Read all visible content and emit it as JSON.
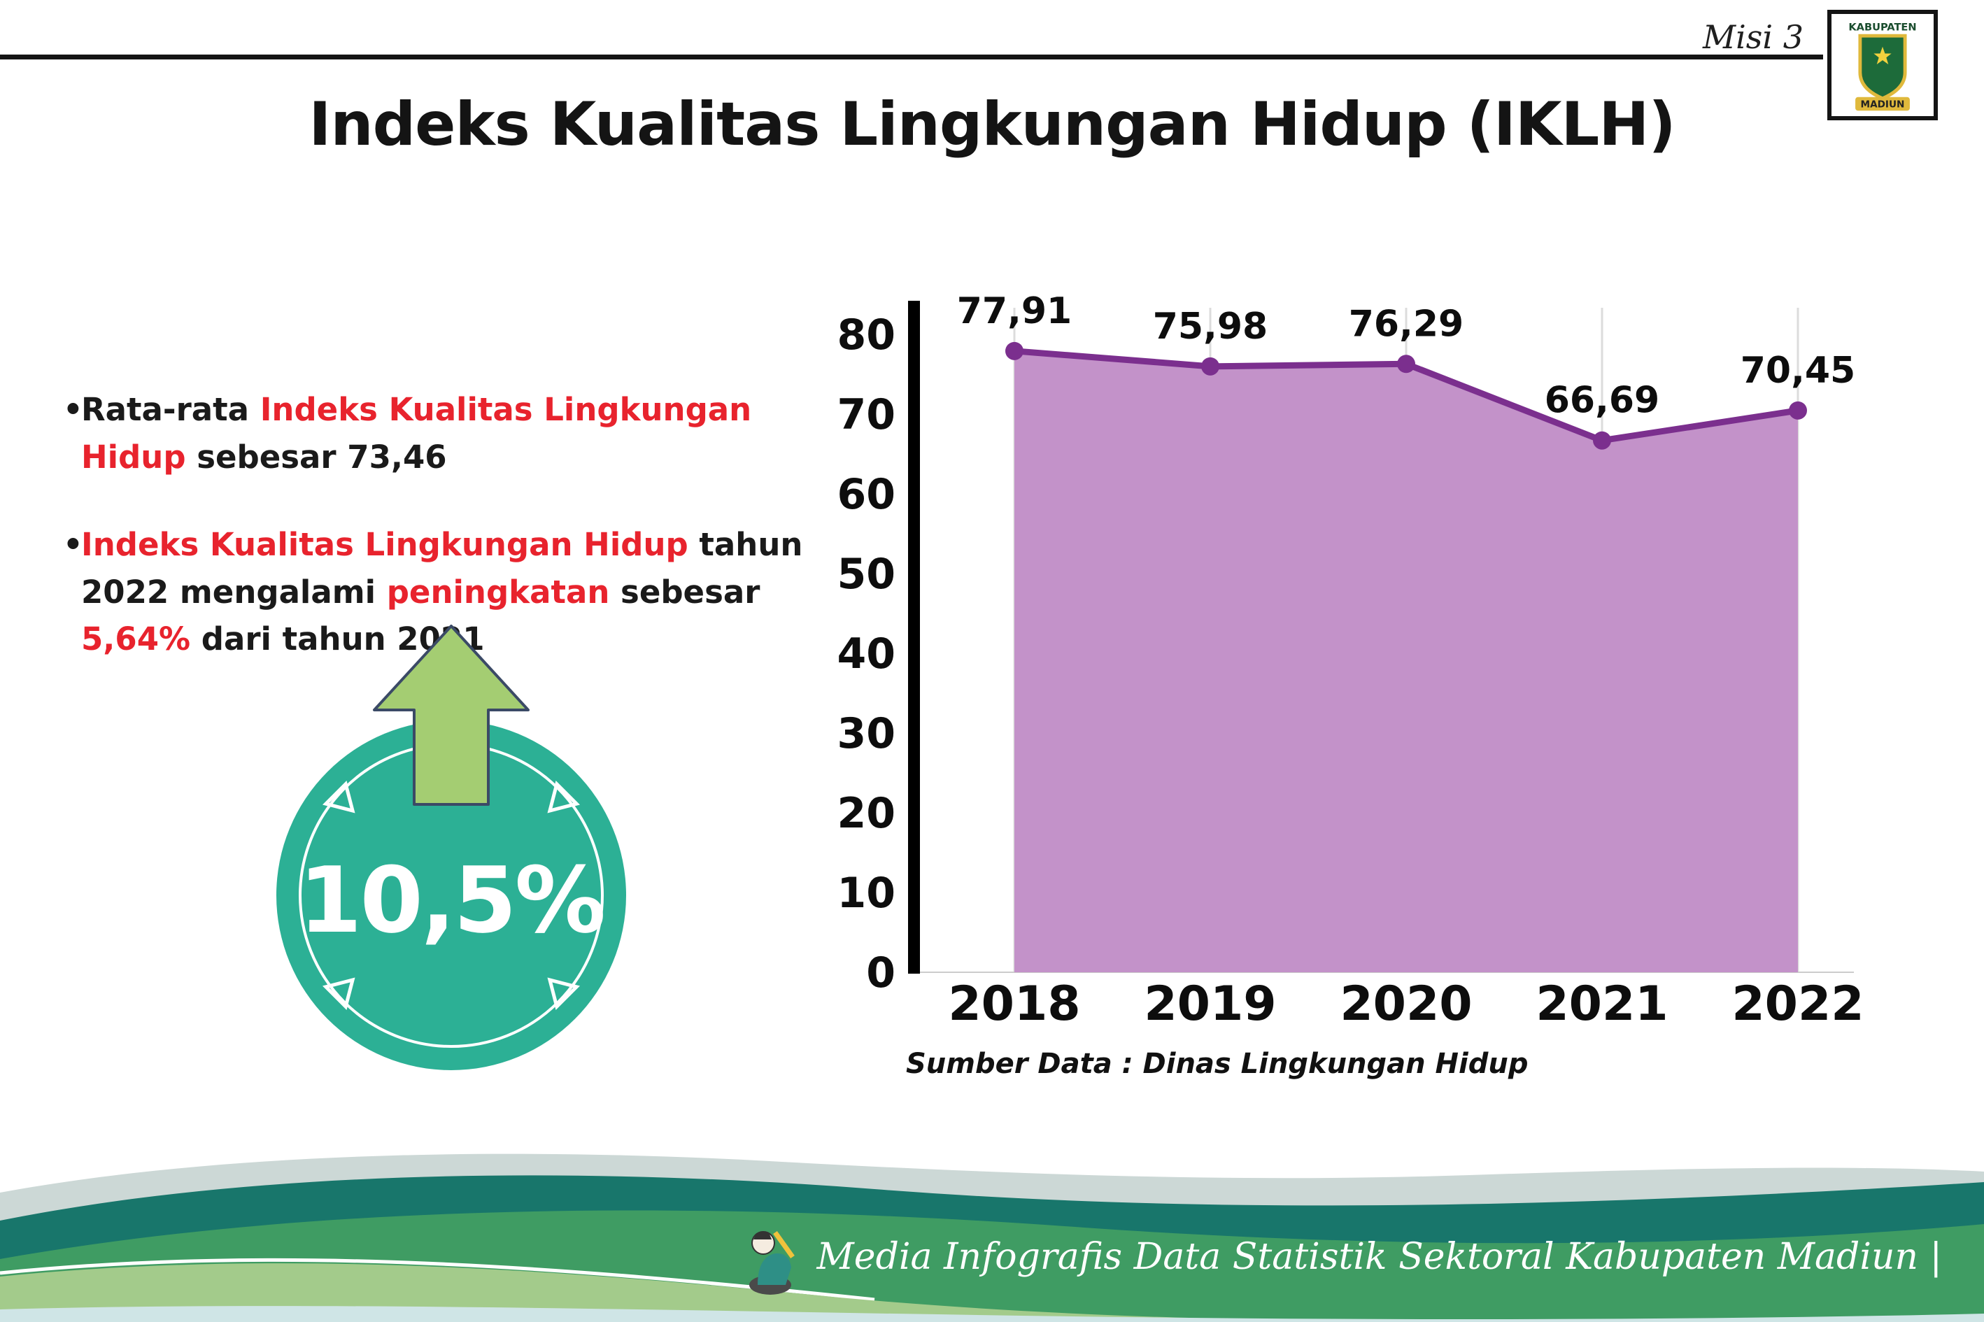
{
  "header": {
    "misi": "Misi 3",
    "title": "Indeks Kualitas Lingkungan Hidup (IKLH)",
    "logo": {
      "top": "KABUPATEN",
      "bottom": "MADIUN"
    }
  },
  "bullets": [
    {
      "segments": [
        {
          "text": "Rata-rata ",
          "red": false
        },
        {
          "text": "Indeks Kualitas Lingkungan Hidup",
          "red": true
        },
        {
          "text": " sebesar 73,46",
          "red": false
        }
      ]
    },
    {
      "segments": [
        {
          "text": "Indeks Kualitas Lingkungan Hidup",
          "red": true
        },
        {
          "text": " tahun 2022 mengalami ",
          "red": false
        },
        {
          "text": "peningkatan",
          "red": true
        },
        {
          "text": " sebesar ",
          "red": false
        },
        {
          "text": "5,64%",
          "red": true
        },
        {
          "text": " dari tahun 2021",
          "red": false
        }
      ]
    }
  ],
  "badge": {
    "value": "10,5%"
  },
  "chart_data": {
    "type": "area",
    "title": "Indeks Kualitas Lingkungan Hidup (IKLH)",
    "categories": [
      "2018",
      "2019",
      "2020",
      "2021",
      "2022"
    ],
    "values": [
      77.91,
      75.98,
      76.29,
      66.69,
      70.45
    ],
    "point_labels": [
      "77,91",
      "75,98",
      "76,29",
      "66,69",
      "70,45"
    ],
    "xlabel": "",
    "ylabel": "",
    "ylim": [
      0,
      80
    ],
    "yticks": [
      0,
      10,
      20,
      30,
      40,
      50,
      60,
      70,
      80
    ],
    "grid": "vertical-light",
    "legend": "none",
    "colors": {
      "fill": "#c392c9",
      "line": "#7b2f8e",
      "point": "#7b2f8e",
      "axis": "#000000"
    }
  },
  "source": "Sumber Data : Dinas Lingkungan Hidup",
  "footer": {
    "text": "Media Infografis Data Statistik Sektoral Kabupaten Madiun |"
  }
}
